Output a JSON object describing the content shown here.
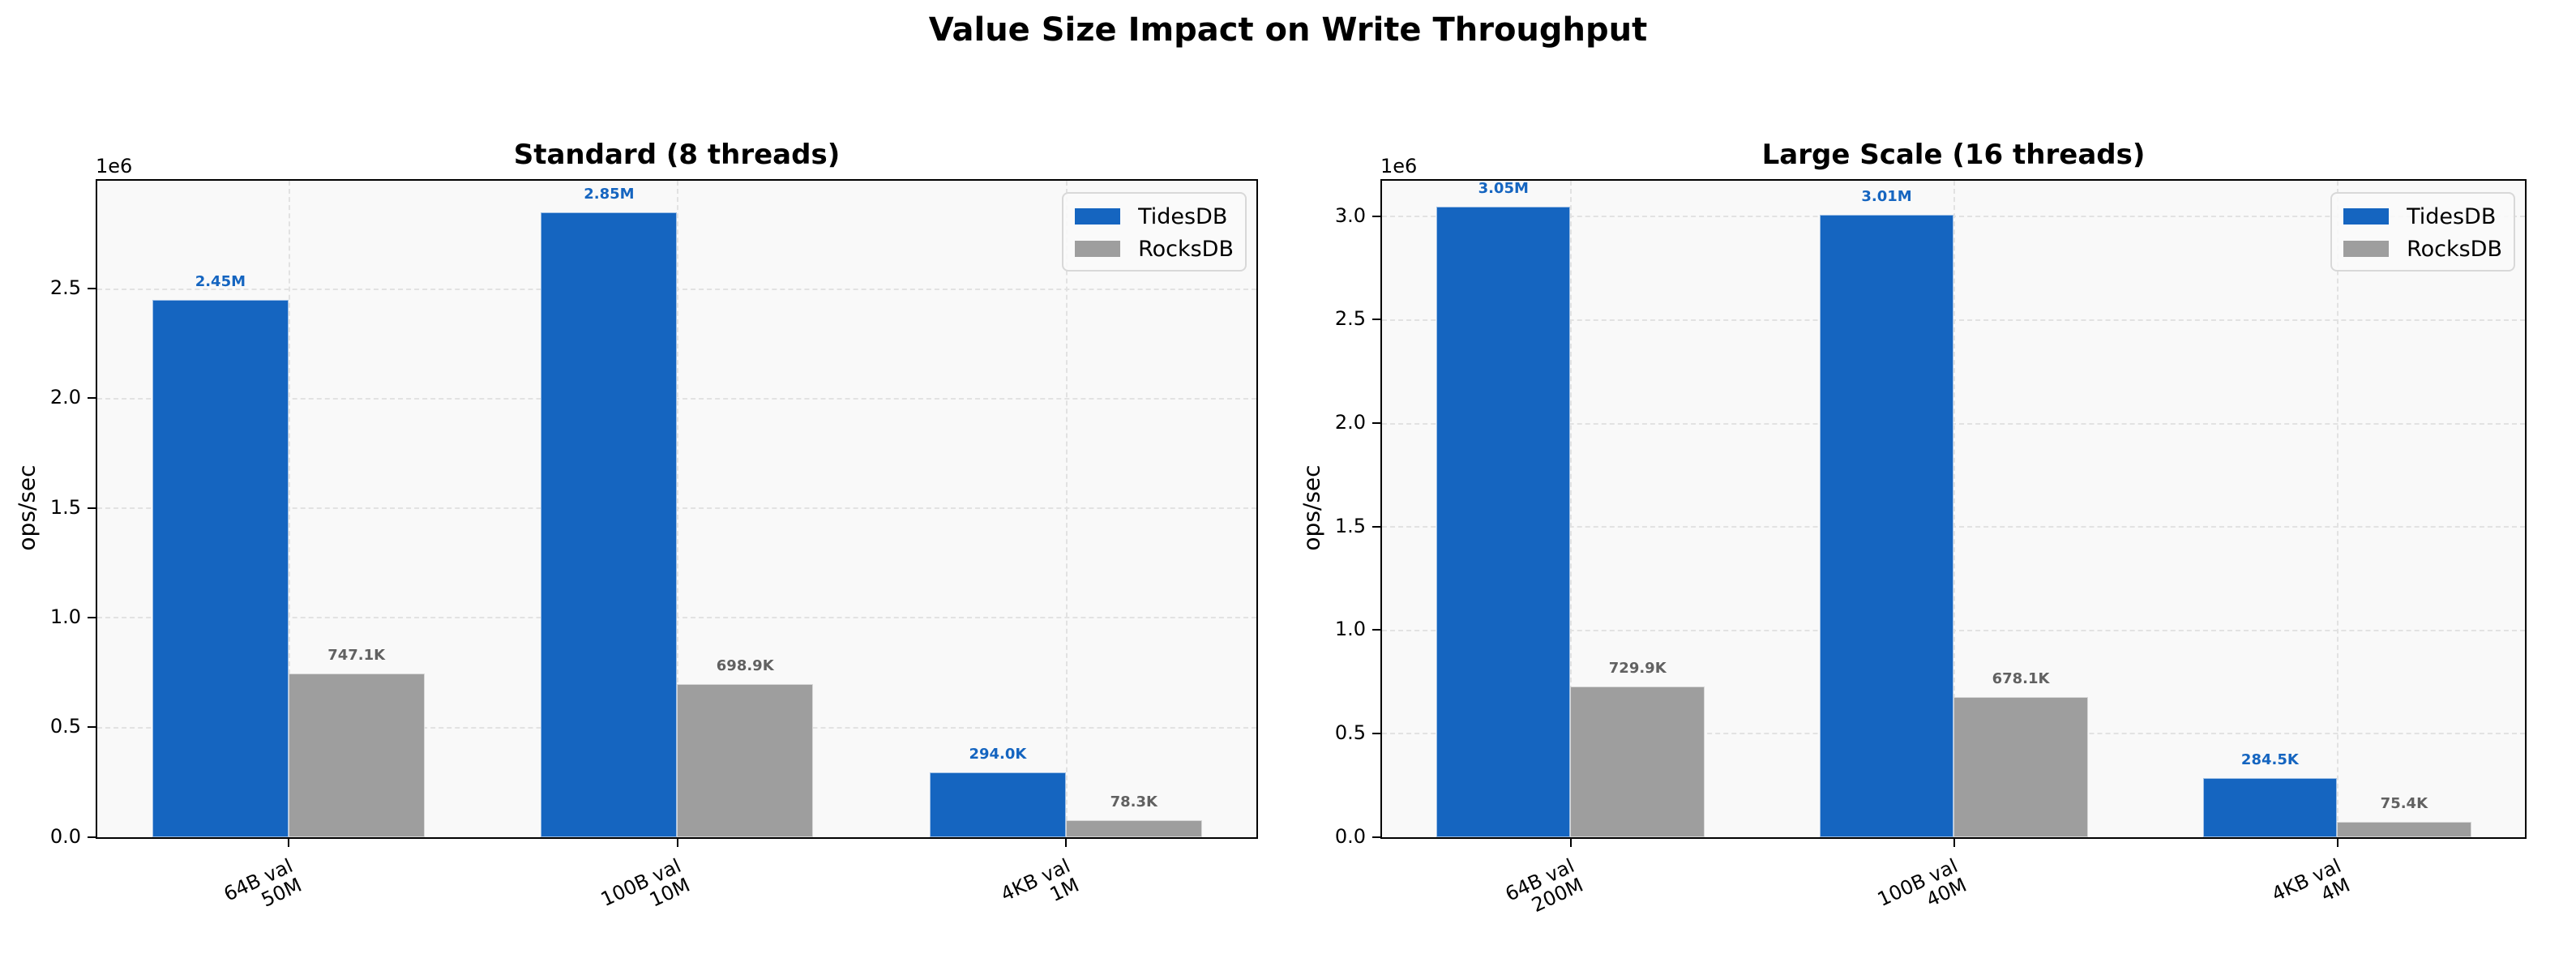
{
  "figure": {
    "title": "Value Size Impact on Write Throughput",
    "colors": {
      "TidesDB": "#1565c0",
      "RocksDB": "#9e9e9e",
      "axes_bg": "#f9f9f9",
      "grid": "#e2e2e2"
    }
  },
  "chart_data": [
    {
      "type": "bar",
      "title": "Standard (8 threads)",
      "xlabel": "",
      "ylabel": "ops/sec",
      "y_offset_label": "1e6",
      "ylim": [
        0,
        2990000
      ],
      "yticks": [
        0,
        500000,
        1000000,
        1500000,
        2000000,
        2500000
      ],
      "ytick_labels": [
        "0.0",
        "0.5",
        "1.0",
        "1.5",
        "2.0",
        "2.5"
      ],
      "categories": [
        "64B val\n50M",
        "100B val\n10M",
        "4KB val\n1M"
      ],
      "grid": true,
      "legend_position": "upper right",
      "series": [
        {
          "name": "TidesDB",
          "color": "#1565c0",
          "values": [
            2450000,
            2850000,
            294000
          ],
          "labels": [
            "2.45M",
            "2.85M",
            "294.0K"
          ]
        },
        {
          "name": "RocksDB",
          "color": "#9e9e9e",
          "values": [
            747100,
            698900,
            78300
          ],
          "labels": [
            "747.1K",
            "698.9K",
            "78.3K"
          ]
        }
      ]
    },
    {
      "type": "bar",
      "title": "Large Scale (16 threads)",
      "xlabel": "",
      "ylabel": "ops/sec",
      "y_offset_label": "1e6",
      "ylim": [
        0,
        3170000
      ],
      "yticks": [
        0,
        500000,
        1000000,
        1500000,
        2000000,
        2500000,
        3000000
      ],
      "ytick_labels": [
        "0.0",
        "0.5",
        "1.0",
        "1.5",
        "2.0",
        "2.5",
        "3.0"
      ],
      "categories": [
        "64B val\n200M",
        "100B val\n40M",
        "4KB val\n4M"
      ],
      "grid": true,
      "legend_position": "upper right",
      "series": [
        {
          "name": "TidesDB",
          "color": "#1565c0",
          "values": [
            3050000,
            3010000,
            284500
          ],
          "labels": [
            "3.05M",
            "3.01M",
            "284.5K"
          ]
        },
        {
          "name": "RocksDB",
          "color": "#9e9e9e",
          "values": [
            729900,
            678100,
            75400
          ],
          "labels": [
            "729.9K",
            "678.1K",
            "75.4K"
          ]
        }
      ]
    }
  ]
}
